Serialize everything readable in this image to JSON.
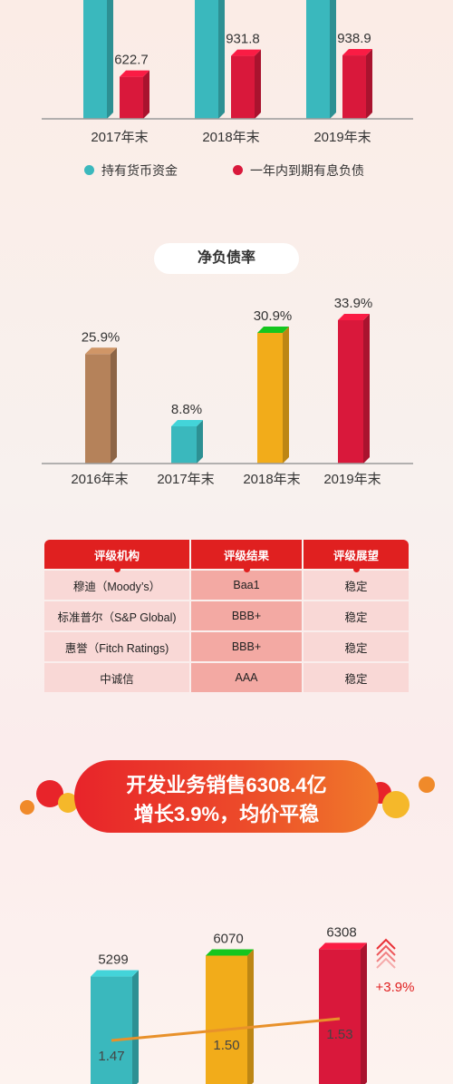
{
  "charts": [
    {
      "id": "cash_vs_debt",
      "type": "bar",
      "categories": [
        "2017年末",
        "2018年末",
        "2019年末"
      ],
      "series": [
        {
          "name": "持有货币资金",
          "color": "#3ab8bd",
          "values": [
            null,
            null,
            null
          ]
        },
        {
          "name": "一年内到期有息负债",
          "color": "#d9183b",
          "values": [
            622.7,
            931.8,
            938.9
          ]
        }
      ],
      "value_labels": [
        "622.7",
        "931.8",
        "938.9"
      ],
      "legend": [
        "持有货币资金",
        "一年内到期有息负债"
      ]
    },
    {
      "id": "net_debt_ratio",
      "type": "bar",
      "title": "净负债率",
      "categories": [
        "2016年末",
        "2017年末",
        "2018年末",
        "2019年末"
      ],
      "values": [
        25.9,
        8.8,
        30.9,
        33.9
      ],
      "value_labels": [
        "25.9%",
        "8.8%",
        "30.9%",
        "33.9%"
      ],
      "colors": [
        "#b5825a",
        "#3ab8bd",
        "#f2ac1a",
        "#d9183b"
      ],
      "ylim": [
        0,
        35
      ]
    },
    {
      "id": "sales",
      "type": "bar",
      "values": [
        5299,
        6070,
        6308
      ],
      "value_labels": [
        "5299",
        "6070",
        "6308"
      ],
      "colors": [
        "#3ab8bd",
        "#f2ac1a",
        "#d9183b"
      ],
      "line_series": {
        "values": [
          1.47,
          1.5,
          1.53
        ],
        "labels": [
          "1.47",
          "1.50",
          "1.53"
        ],
        "color": "#e8912a"
      },
      "growth_label": "+3.9%"
    }
  ],
  "rating_table": {
    "headers": [
      "评级机构",
      "评级结果",
      "评级展望"
    ],
    "rows": [
      [
        "穆迪（Moody’s）",
        "Baa1",
        "稳定"
      ],
      [
        "标准普尔（S&P Global)",
        "BBB+",
        "稳定"
      ],
      [
        "惠誉（Fitch Ratings)",
        "BBB+",
        "稳定"
      ],
      [
        "中诚信",
        "AAA",
        "稳定"
      ]
    ]
  },
  "banner": {
    "line1": "开发业务销售6308.4亿",
    "line2": "增长3.9%，均价平稳"
  },
  "colors": {
    "teal": "#3ab8bd",
    "crimson": "#d9183b",
    "gold": "#f2ac1a",
    "brown": "#b5825a",
    "red": "#e02020"
  }
}
